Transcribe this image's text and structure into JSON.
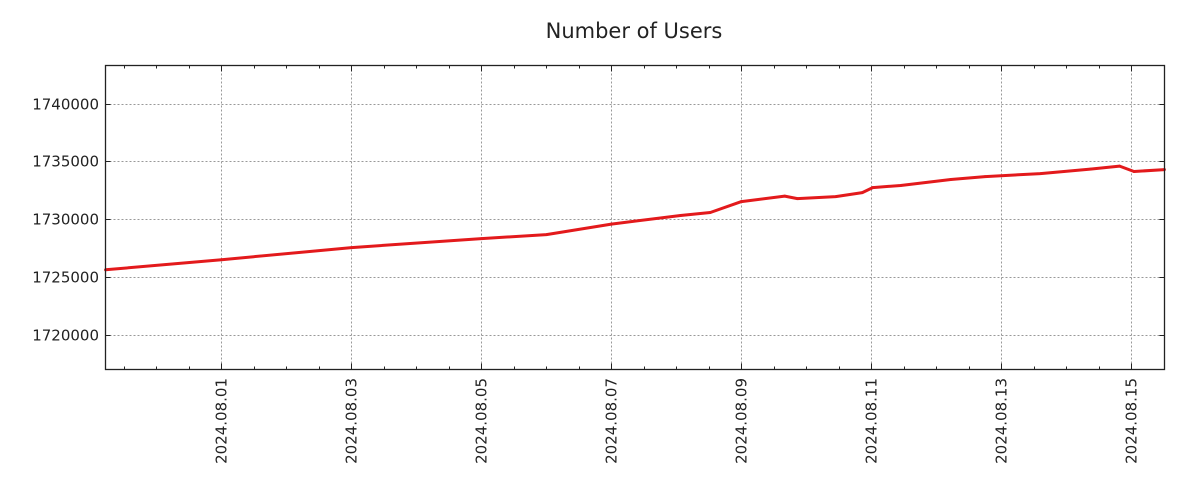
{
  "chart_data": {
    "type": "line",
    "title": "Number of Users",
    "xlabel": "",
    "ylabel": "",
    "xlim": [
      "2024-07-30T05:10",
      "2024-08-15T12:15"
    ],
    "ylim": [
      1716970,
      1743290
    ],
    "grid": true,
    "x_ticks": [
      "2024.08.01",
      "2024.08.03",
      "2024.08.05",
      "2024.08.07",
      "2024.08.09",
      "2024.08.11",
      "2024.08.13",
      "2024.08.15"
    ],
    "y_ticks": [
      1720000,
      1725000,
      1730000,
      1735000,
      1740000
    ],
    "series": [
      {
        "name": "Number of Users",
        "color": "#e31a1c",
        "x": [
          "2024-07-30T05:10",
          "2024-08-01T00:00",
          "2024-08-03T00:00",
          "2024-08-05T00:00",
          "2024-08-06T00:00",
          "2024-08-07T00:00",
          "2024-08-08T01:30",
          "2024-08-08T12:30",
          "2024-08-09T00:00",
          "2024-08-09T16:00",
          "2024-08-09T20:40",
          "2024-08-10T10:50",
          "2024-08-10T20:40",
          "2024-08-11T00:30",
          "2024-08-11T10:50",
          "2024-08-12T05:20",
          "2024-08-12T18:00",
          "2024-08-13T14:25",
          "2024-08-14T08:50",
          "2024-08-14T19:40",
          "2024-08-15T01:00",
          "2024-08-15T12:15"
        ],
        "y": [
          1725600,
          1726480,
          1727520,
          1728300,
          1728650,
          1729560,
          1730300,
          1730560,
          1731510,
          1731980,
          1731770,
          1731940,
          1732290,
          1732720,
          1732900,
          1733420,
          1733670,
          1733930,
          1734320,
          1734580,
          1734110,
          1734280
        ]
      }
    ]
  }
}
